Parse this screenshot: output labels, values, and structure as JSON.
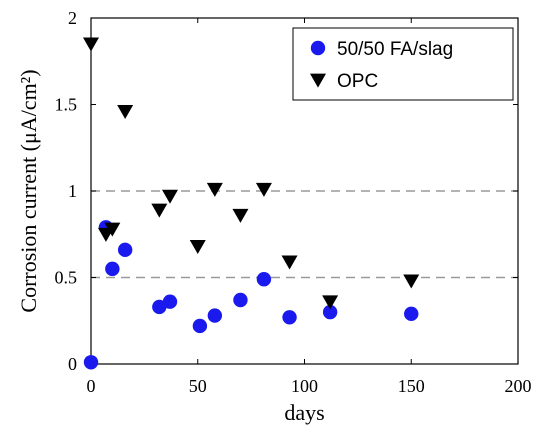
{
  "chart_data": {
    "type": "scatter",
    "xlabel": "days",
    "ylabel": "Corrosion current (μA/cm²)",
    "xlim": [
      0,
      200
    ],
    "ylim": [
      0,
      2
    ],
    "x_ticks": [
      0,
      50,
      100,
      150,
      200
    ],
    "y_ticks": [
      0,
      0.5,
      1,
      1.5,
      2
    ],
    "y_tick_labels": [
      "0",
      "0.5",
      "1",
      "1.5",
      "2"
    ],
    "reference_lines_y": [
      0.5,
      1
    ],
    "legend_position": "top-right",
    "series": [
      {
        "name": "50/50 FA/slag",
        "marker": "circle",
        "color": "#1a1aee",
        "points": [
          {
            "x": 0,
            "y": 0.01
          },
          {
            "x": 7,
            "y": 0.79
          },
          {
            "x": 10,
            "y": 0.55
          },
          {
            "x": 16,
            "y": 0.66
          },
          {
            "x": 32,
            "y": 0.33
          },
          {
            "x": 37,
            "y": 0.36
          },
          {
            "x": 51,
            "y": 0.22
          },
          {
            "x": 58,
            "y": 0.28
          },
          {
            "x": 70,
            "y": 0.37
          },
          {
            "x": 81,
            "y": 0.49
          },
          {
            "x": 93,
            "y": 0.27
          },
          {
            "x": 112,
            "y": 0.3
          },
          {
            "x": 150,
            "y": 0.29
          }
        ]
      },
      {
        "name": "OPC",
        "marker": "triangle-down",
        "color": "#000000",
        "points": [
          {
            "x": 0,
            "y": 1.85
          },
          {
            "x": 7,
            "y": 0.75
          },
          {
            "x": 10,
            "y": 0.78
          },
          {
            "x": 16,
            "y": 1.46
          },
          {
            "x": 32,
            "y": 0.89
          },
          {
            "x": 37,
            "y": 0.97
          },
          {
            "x": 50,
            "y": 0.68
          },
          {
            "x": 58,
            "y": 1.01
          },
          {
            "x": 70,
            "y": 0.86
          },
          {
            "x": 81,
            "y": 1.01
          },
          {
            "x": 93,
            "y": 0.59
          },
          {
            "x": 112,
            "y": 0.36
          },
          {
            "x": 150,
            "y": 0.48
          }
        ]
      }
    ]
  }
}
